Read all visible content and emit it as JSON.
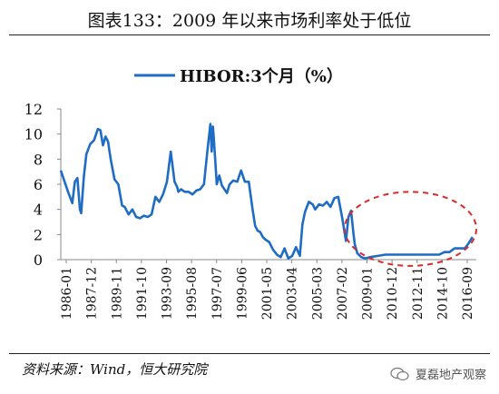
{
  "page": {
    "title": "图表133：2009 年以来市场利率处于低位",
    "source": "资料来源：Wind，恒大研究院",
    "watermark": "夏磊地产观察"
  },
  "chart_data": {
    "type": "line",
    "title": "",
    "xlabel": "",
    "ylabel": "",
    "ylim": [
      0,
      12
    ],
    "yticks": [
      0,
      2,
      4,
      6,
      8,
      10,
      12
    ],
    "xlim": [
      1986.0,
      2018.5
    ],
    "xtick_labels": [
      "1986-01",
      "1987-12",
      "1989-11",
      "1991-10",
      "1993-09",
      "1995-08",
      "1997-07",
      "1999-06",
      "2001-05",
      "2003-04",
      "2005-03",
      "2007-02",
      "2009-01",
      "2010-12",
      "2012-11",
      "2014-10",
      "2016-09"
    ],
    "legend": {
      "position": "top-center",
      "entries": [
        "HIBOR:3个月（%）"
      ]
    },
    "line_color": "#1f6cc4",
    "grid": false,
    "series": [
      {
        "name": "HIBOR:3个月（%）",
        "x": [
          1986.0,
          1986.3,
          1986.6,
          1986.9,
          1987.1,
          1987.3,
          1987.5,
          1987.6,
          1987.8,
          1988.0,
          1988.3,
          1988.6,
          1988.9,
          1989.1,
          1989.3,
          1989.5,
          1989.7,
          1989.9,
          1990.2,
          1990.5,
          1990.8,
          1991.0,
          1991.3,
          1991.6,
          1991.9,
          1992.2,
          1992.5,
          1992.8,
          1993.1,
          1993.4,
          1993.7,
          1994.0,
          1994.3,
          1994.6,
          1994.9,
          1995.1,
          1995.2,
          1995.4,
          1995.7,
          1996.0,
          1996.3,
          1996.6,
          1996.9,
          1997.2,
          1997.5,
          1997.7,
          1997.8,
          1997.9,
          1998.0,
          1998.2,
          1998.4,
          1998.6,
          1998.8,
          1999.0,
          1999.2,
          1999.5,
          1999.8,
          2000.1,
          2000.4,
          2000.7,
          2001.0,
          2001.2,
          2001.4,
          2001.6,
          2001.8,
          2002.0,
          2002.3,
          2002.6,
          2002.9,
          2003.2,
          2003.5,
          2003.8,
          2004.1,
          2004.4,
          2004.7,
          2004.9,
          2005.1,
          2005.4,
          2005.7,
          2005.9,
          2006.2,
          2006.5,
          2006.8,
          2007.1,
          2007.4,
          2007.7,
          2008.0,
          2008.3,
          2008.5,
          2008.7,
          2008.9,
          2009.0,
          2009.2,
          2009.5,
          2009.8,
          2010.2,
          2010.8,
          2011.4,
          2012.0,
          2012.6,
          2013.2,
          2013.8,
          2014.4,
          2015.0,
          2015.6,
          2016.0,
          2016.4,
          2016.8,
          2017.2,
          2017.6,
          2017.9,
          2018.2
        ],
        "values": [
          7.1,
          6.2,
          5.3,
          4.5,
          6.2,
          6.5,
          4.0,
          3.7,
          6.6,
          8.4,
          9.2,
          9.5,
          10.4,
          10.3,
          9.1,
          9.8,
          9.4,
          8.0,
          6.4,
          6.0,
          4.3,
          4.2,
          3.6,
          4.0,
          3.4,
          3.3,
          3.5,
          3.4,
          3.6,
          5.0,
          4.6,
          5.2,
          6.2,
          8.6,
          6.2,
          5.8,
          5.4,
          5.6,
          5.4,
          5.4,
          5.2,
          5.5,
          5.6,
          6.0,
          9.0,
          10.8,
          8.6,
          10.6,
          9.2,
          6.0,
          6.7,
          5.9,
          5.6,
          5.3,
          6.0,
          6.3,
          6.2,
          7.1,
          6.2,
          6.2,
          4.0,
          2.7,
          2.3,
          2.2,
          1.8,
          1.6,
          1.4,
          0.8,
          0.4,
          0.2,
          0.9,
          0.1,
          0.3,
          1.0,
          0.3,
          2.8,
          3.8,
          4.6,
          4.4,
          4.0,
          4.4,
          4.3,
          4.6,
          4.2,
          4.9,
          5.0,
          3.4,
          1.5,
          3.4,
          3.9,
          2.0,
          1.2,
          0.5,
          0.2,
          0.1,
          0.2,
          0.3,
          0.4,
          0.4,
          0.4,
          0.4,
          0.4,
          0.4,
          0.4,
          0.4,
          0.6,
          0.6,
          0.9,
          0.9,
          0.9,
          1.3,
          1.8
        ]
      }
    ],
    "annotations": [
      {
        "type": "dashed-ellipse",
        "color": "#d92b2b",
        "x_range": [
          2008.2,
          2018.5
        ],
        "y_range": [
          -0.5,
          5.4
        ]
      }
    ]
  }
}
